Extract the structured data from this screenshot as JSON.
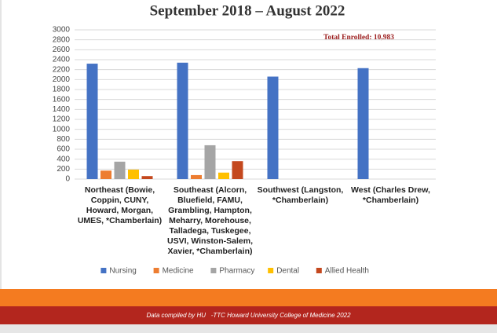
{
  "chart_data": {
    "type": "bar",
    "title": "September 2018 – August 2022",
    "annotation": "Total Enrolled: 10,983",
    "categories": [
      "Northeast (Bowie, Coppin, CUNY, Howard, Morgan, UMES, *Chamberlain)",
      "Southeast (Alcorn, Bluefield, FAMU, Grambling, Hampton, Meharry, Morehouse, Talladega, Tuskegee, USVI, Winston-Salem, Xavier, *Chamberlain)",
      "Southwest (Langston, *Chamberlain)",
      "West (Charles Drew, *Chamberlain)"
    ],
    "series": [
      {
        "name": "Nursing",
        "color": "#4472c4",
        "values": [
          2320,
          2340,
          2060,
          2230
        ]
      },
      {
        "name": "Medicine",
        "color": "#ed7d31",
        "values": [
          170,
          80,
          null,
          null
        ]
      },
      {
        "name": "Pharmacy",
        "color": "#a5a5a5",
        "values": [
          350,
          680,
          null,
          null
        ]
      },
      {
        "name": "Dental",
        "color": "#ffc000",
        "values": [
          190,
          130,
          null,
          null
        ]
      },
      {
        "name": "Allied Health",
        "color": "#c4481e",
        "values": [
          60,
          360,
          null,
          null
        ]
      }
    ],
    "ylim": [
      0,
      3000
    ],
    "yticks": [
      0,
      200,
      400,
      600,
      800,
      1000,
      1200,
      1400,
      1600,
      1800,
      2000,
      2200,
      2400,
      2600,
      2800,
      3000
    ],
    "grid": true,
    "legend": "bottom"
  },
  "footer": {
    "text": "Data compiled by HU   -TTC Howard University College of Medicine 2022"
  }
}
